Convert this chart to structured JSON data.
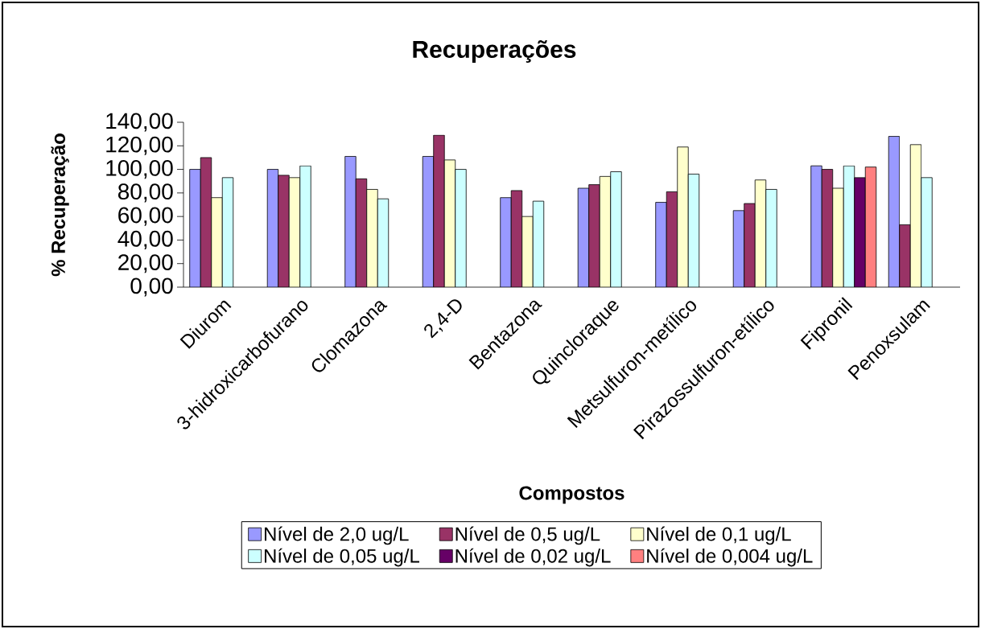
{
  "chart_data": {
    "type": "bar",
    "title": "Recuperações",
    "xlabel": "Compostos",
    "ylabel": "% Recuperação",
    "categories": [
      "Diurom",
      "3-hidroxicarbofurano",
      "Clomazona",
      "2,4-D",
      "Bentazona",
      "Quincloraque",
      "Metsulfuron-metílico",
      "Pirazossulfuron-etílico",
      "Fipronil",
      "Penoxsulam"
    ],
    "series": [
      {
        "name": "Nível de 2,0 ug/L",
        "color": "#9999ff",
        "values": [
          100,
          100,
          111,
          111,
          76,
          84,
          72,
          65,
          103,
          128
        ]
      },
      {
        "name": "Nível de 0,5 ug/L",
        "color": "#993366",
        "values": [
          110,
          95,
          92,
          129,
          82,
          87,
          81,
          71,
          100,
          53
        ]
      },
      {
        "name": "Nível de 0,1 ug/L",
        "color": "#ffffcc",
        "values": [
          76,
          93,
          83,
          108,
          60,
          94,
          119,
          91,
          84,
          121
        ]
      },
      {
        "name": "Nível de 0,05 ug/L",
        "color": "#ccffff",
        "values": [
          93,
          103,
          75,
          100,
          73,
          98,
          96,
          83,
          103,
          93
        ]
      },
      {
        "name": "Nível de 0,02 ug/L",
        "color": "#660066",
        "values": [
          null,
          null,
          null,
          null,
          null,
          null,
          null,
          null,
          93,
          null
        ]
      },
      {
        "name": "Nível de 0,004 ug/L",
        "color": "#ff8080",
        "values": [
          null,
          null,
          null,
          null,
          null,
          null,
          null,
          null,
          102,
          null
        ]
      }
    ],
    "ylim": [
      0,
      140
    ],
    "yticks": [
      {
        "value": 0,
        "label": "0,00"
      },
      {
        "value": 20,
        "label": "20,00"
      },
      {
        "value": 40,
        "label": "40,00"
      },
      {
        "value": 60,
        "label": "60,00"
      },
      {
        "value": 80,
        "label": "80,00"
      },
      {
        "value": 100,
        "label": "100,00"
      },
      {
        "value": 120,
        "label": "120,00"
      },
      {
        "value": 140,
        "label": "140,00"
      }
    ],
    "legend": "bottom"
  }
}
